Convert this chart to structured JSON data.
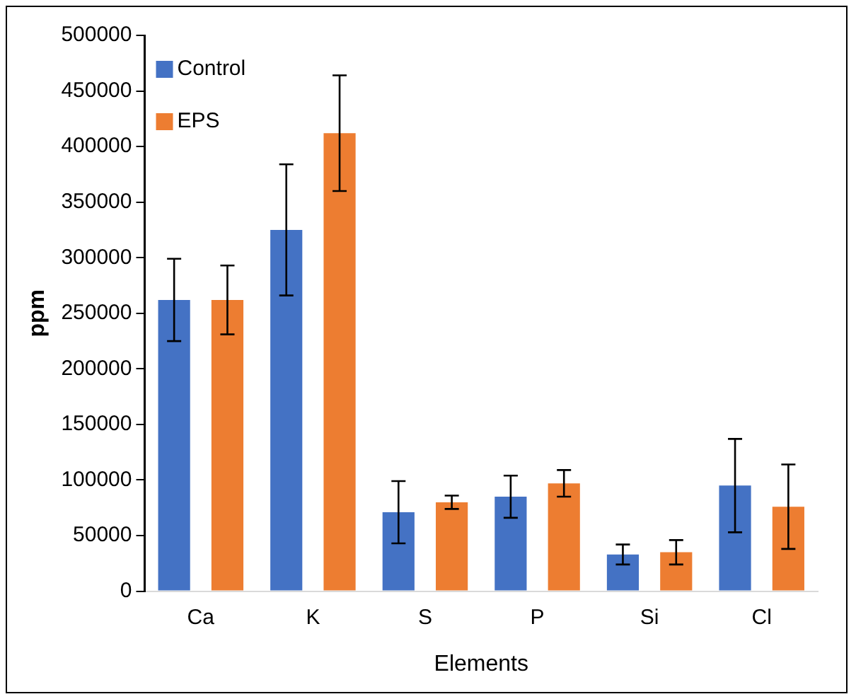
{
  "chart_data": {
    "type": "bar",
    "xlabel": "Elements",
    "ylabel": "ppm",
    "categories": [
      "Ca",
      "K",
      "S",
      "P",
      "Si",
      "Cl"
    ],
    "series": [
      {
        "name": "Control",
        "color": "#4472c4",
        "values": [
          262000,
          325000,
          71000,
          85000,
          33000,
          95000
        ],
        "errors": [
          37000,
          59000,
          28000,
          19000,
          9000,
          42000
        ]
      },
      {
        "name": "EPS",
        "color": "#ed7d31",
        "values": [
          262000,
          412000,
          80000,
          97000,
          35000,
          76000
        ],
        "errors": [
          31000,
          52000,
          6000,
          12000,
          11000,
          38000
        ]
      }
    ],
    "ylim": [
      0,
      500000
    ],
    "yticks": [
      0,
      50000,
      100000,
      150000,
      200000,
      250000,
      300000,
      350000,
      400000,
      450000,
      500000
    ],
    "grid": false,
    "legend": "top left"
  }
}
